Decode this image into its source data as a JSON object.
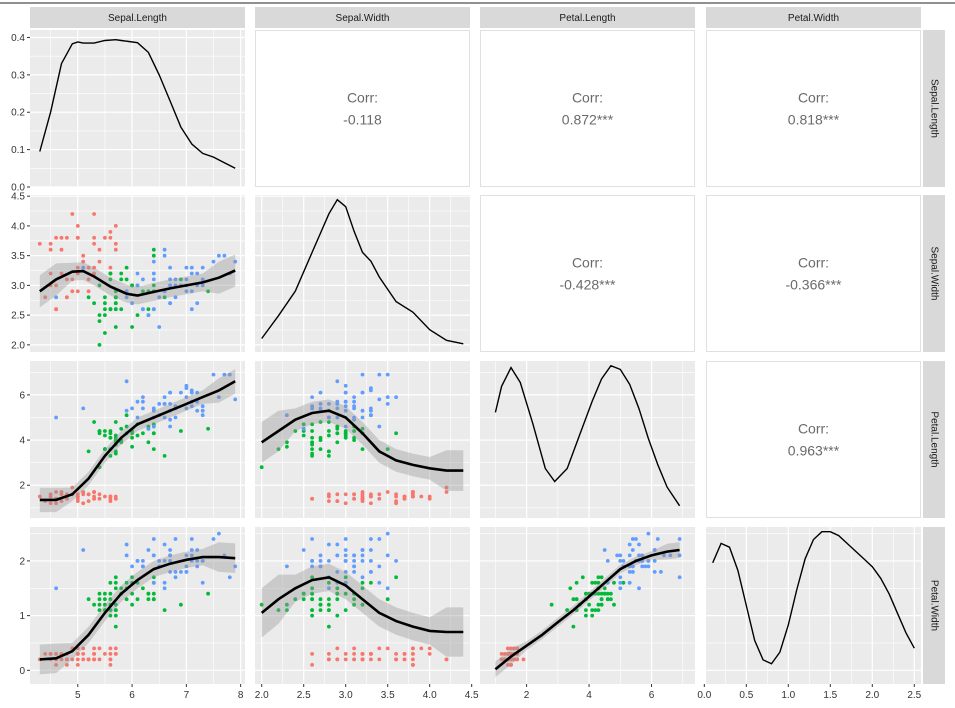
{
  "chart_data": {
    "type": "pairs-matrix",
    "variables": [
      "Sepal.Length",
      "Sepal.Width",
      "Petal.Length",
      "Petal.Width"
    ],
    "axes": {
      "x_ticks": [
        [
          "5",
          "6",
          "7",
          "8"
        ],
        [
          "2.0",
          "2.5",
          "3.0",
          "3.5",
          "4.0",
          "4.5"
        ],
        [
          "2",
          "4",
          "6"
        ],
        [
          "0.0",
          "0.5",
          "1.0",
          "1.5",
          "2.0",
          "2.5"
        ]
      ],
      "y_ticks": [
        [
          "0.0",
          "0.1",
          "0.2",
          "0.3",
          "0.4"
        ],
        [
          "2.0",
          "2.5",
          "3.0",
          "3.5",
          "4.0",
          "4.5"
        ],
        [
          "2",
          "4",
          "6"
        ],
        [
          "0",
          "1",
          "2"
        ]
      ],
      "x_ranges": [
        [
          4.3,
          7.9
        ],
        [
          2.0,
          4.4
        ],
        [
          1.0,
          6.9
        ],
        [
          0.1,
          2.5
        ]
      ],
      "density_ylim": [
        0,
        0.42
      ],
      "grid": true
    },
    "species_colors": {
      "setosa": "#F8766D",
      "versicolor": "#00BA38",
      "virginica": "#619CFF"
    },
    "correlations": [
      {
        "row": "Sepal.Length",
        "col": "Sepal.Width",
        "label": "Corr:",
        "value": "-0.118"
      },
      {
        "row": "Sepal.Length",
        "col": "Petal.Length",
        "label": "Corr:",
        "value": "0.872***"
      },
      {
        "row": "Sepal.Length",
        "col": "Petal.Width",
        "label": "Corr:",
        "value": "0.818***"
      },
      {
        "row": "Sepal.Width",
        "col": "Petal.Length",
        "label": "Corr:",
        "value": "-0.428***"
      },
      {
        "row": "Sepal.Width",
        "col": "Petal.Width",
        "label": "Corr:",
        "value": "-0.366***"
      },
      {
        "row": "Petal.Length",
        "col": "Petal.Width",
        "label": "Corr:",
        "value": "0.963***"
      }
    ],
    "densities": [
      {
        "variable": "Sepal.Length",
        "x": [
          4.3,
          4.5,
          4.7,
          4.9,
          5.0,
          5.1,
          5.3,
          5.5,
          5.7,
          5.8,
          5.9,
          6.1,
          6.3,
          6.5,
          6.7,
          6.9,
          7.1,
          7.3,
          7.5,
          7.7,
          7.9
        ],
        "y": [
          0.095,
          0.2,
          0.33,
          0.383,
          0.388,
          0.385,
          0.385,
          0.392,
          0.394,
          0.392,
          0.39,
          0.386,
          0.36,
          0.3,
          0.23,
          0.16,
          0.115,
          0.09,
          0.08,
          0.065,
          0.05
        ]
      },
      {
        "variable": "Sepal.Width",
        "x": [
          2.0,
          2.2,
          2.4,
          2.6,
          2.8,
          2.9,
          3.0,
          3.1,
          3.2,
          3.3,
          3.4,
          3.6,
          3.8,
          4.0,
          4.2,
          4.4
        ],
        "y": [
          0.025,
          0.09,
          0.16,
          0.27,
          0.38,
          0.42,
          0.4,
          0.33,
          0.27,
          0.245,
          0.2,
          0.13,
          0.1,
          0.05,
          0.02,
          0.01
        ]
      },
      {
        "variable": "Petal.Length",
        "x": [
          1.0,
          1.2,
          1.5,
          1.8,
          2.2,
          2.6,
          2.9,
          3.3,
          3.7,
          4.1,
          4.4,
          4.7,
          5.0,
          5.3,
          5.6,
          5.9,
          6.2,
          6.5,
          6.9
        ],
        "y": [
          0.27,
          0.34,
          0.39,
          0.35,
          0.24,
          0.12,
          0.085,
          0.12,
          0.21,
          0.3,
          0.36,
          0.395,
          0.385,
          0.345,
          0.28,
          0.2,
          0.13,
          0.07,
          0.02
        ]
      },
      {
        "variable": "Petal.Width",
        "x": [
          0.1,
          0.2,
          0.3,
          0.4,
          0.5,
          0.6,
          0.7,
          0.8,
          0.9,
          1.0,
          1.1,
          1.2,
          1.3,
          1.4,
          1.5,
          1.6,
          1.7,
          1.8,
          1.9,
          2.0,
          2.1,
          2.2,
          2.3,
          2.4,
          2.5
        ],
        "y": [
          0.3,
          0.35,
          0.34,
          0.28,
          0.19,
          0.1,
          0.05,
          0.04,
          0.07,
          0.14,
          0.23,
          0.31,
          0.36,
          0.38,
          0.38,
          0.37,
          0.35,
          0.33,
          0.31,
          0.29,
          0.26,
          0.22,
          0.17,
          0.12,
          0.08
        ]
      }
    ],
    "smooth_lines": [
      {
        "x": "Sepal.Length",
        "y": "Sepal.Width",
        "xs": [
          4.3,
          4.6,
          4.9,
          5.1,
          5.3,
          5.6,
          5.9,
          6.1,
          6.4,
          6.7,
          7.0,
          7.3,
          7.6,
          7.9
        ],
        "ys": [
          2.9,
          3.1,
          3.23,
          3.24,
          3.15,
          2.98,
          2.86,
          2.83,
          2.89,
          2.95,
          3.0,
          3.05,
          3.13,
          3.25
        ],
        "band": 0.15
      },
      {
        "x": "Sepal.Length",
        "y": "Petal.Length",
        "xs": [
          4.3,
          4.6,
          4.9,
          5.2,
          5.5,
          5.8,
          6.1,
          6.4,
          6.7,
          7.0,
          7.3,
          7.6,
          7.9
        ],
        "ys": [
          1.35,
          1.35,
          1.6,
          2.3,
          3.3,
          4.1,
          4.7,
          5.0,
          5.3,
          5.6,
          5.9,
          6.2,
          6.6
        ],
        "band": 0.3
      },
      {
        "x": "Sepal.Length",
        "y": "Petal.Width",
        "xs": [
          4.3,
          4.6,
          4.9,
          5.2,
          5.5,
          5.8,
          6.1,
          6.4,
          6.7,
          7.0,
          7.3,
          7.6,
          7.9
        ],
        "ys": [
          0.2,
          0.22,
          0.35,
          0.65,
          1.05,
          1.4,
          1.65,
          1.85,
          1.95,
          2.02,
          2.07,
          2.07,
          2.05
        ],
        "band": 0.15
      },
      {
        "x": "Sepal.Width",
        "y": "Petal.Length",
        "xs": [
          2.0,
          2.2,
          2.4,
          2.6,
          2.8,
          3.0,
          3.2,
          3.4,
          3.6,
          3.8,
          4.0,
          4.2,
          4.4
        ],
        "ys": [
          3.9,
          4.4,
          4.9,
          5.2,
          5.3,
          5.0,
          4.3,
          3.5,
          3.1,
          2.9,
          2.75,
          2.65,
          2.65
        ],
        "band": 0.5
      },
      {
        "x": "Sepal.Width",
        "y": "Petal.Width",
        "xs": [
          2.0,
          2.2,
          2.4,
          2.6,
          2.8,
          3.0,
          3.2,
          3.4,
          3.6,
          3.8,
          4.0,
          4.2,
          4.4
        ],
        "ys": [
          1.05,
          1.3,
          1.5,
          1.65,
          1.7,
          1.55,
          1.3,
          1.05,
          0.9,
          0.8,
          0.72,
          0.7,
          0.7
        ],
        "band": 0.25
      },
      {
        "x": "Petal.Length",
        "y": "Petal.Width",
        "xs": [
          1.0,
          1.5,
          2.0,
          2.5,
          3.0,
          3.5,
          4.0,
          4.5,
          5.0,
          5.5,
          6.0,
          6.5,
          6.9
        ],
        "ys": [
          0.02,
          0.25,
          0.45,
          0.65,
          0.88,
          1.1,
          1.35,
          1.6,
          1.85,
          2.0,
          2.1,
          2.17,
          2.2
        ],
        "band": 0.08
      }
    ]
  }
}
